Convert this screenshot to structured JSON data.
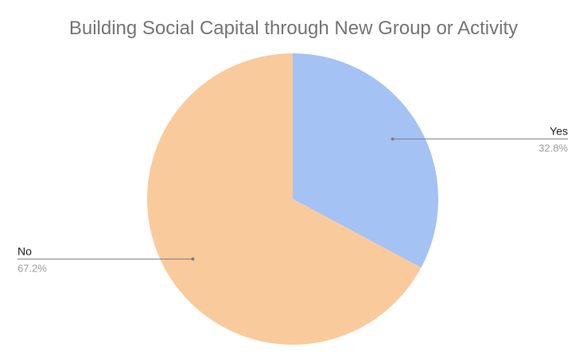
{
  "chart_data": {
    "type": "pie",
    "title": "Building Social Capital through New Group or Activity",
    "slices": [
      {
        "label": "Yes",
        "value": 32.8,
        "percent_label": "32.8%",
        "color": "#a4c2f4"
      },
      {
        "label": "No",
        "value": 67.2,
        "percent_label": "67.2%",
        "color": "#f9cb9c"
      }
    ],
    "start_angle_deg": 0,
    "direction": "clockwise",
    "legend": "none"
  }
}
